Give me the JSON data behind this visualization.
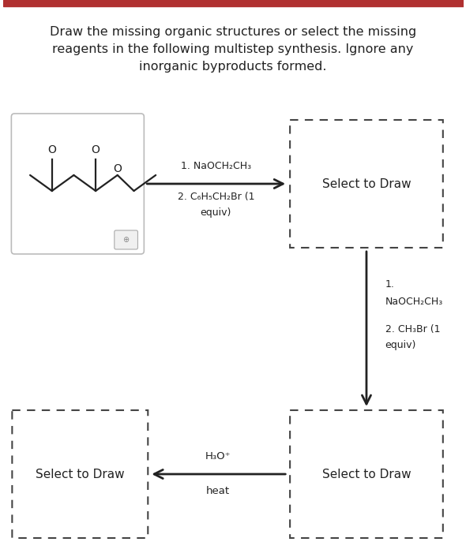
{
  "title_line1": "Draw the missing organic structures or select the missing",
  "title_line2": "reagents in the following multistep synthesis. Ignore any",
  "title_line3": "inorganic byproducts formed.",
  "title_fontsize": 11.5,
  "bg_color": "#ffffff",
  "top_bar_color": "#b03030",
  "arrow1_label1": "1. NaOCH₂CH₃",
  "arrow1_label2": "2. C₆H₅CH₂Br (1",
  "arrow1_label3": "equiv)",
  "arrow2_label1": "1.",
  "arrow2_label2": "NaOCH₂CH₃",
  "arrow2_label3": "2. CH₃Br (1",
  "arrow2_label4": "equiv)",
  "arrow3_label1": "H₃O⁺",
  "arrow3_label2": "heat",
  "select_text": "Select to Draw",
  "text_color": "#222222",
  "dashed_color": "#444444",
  "molecule_color": "#222222"
}
